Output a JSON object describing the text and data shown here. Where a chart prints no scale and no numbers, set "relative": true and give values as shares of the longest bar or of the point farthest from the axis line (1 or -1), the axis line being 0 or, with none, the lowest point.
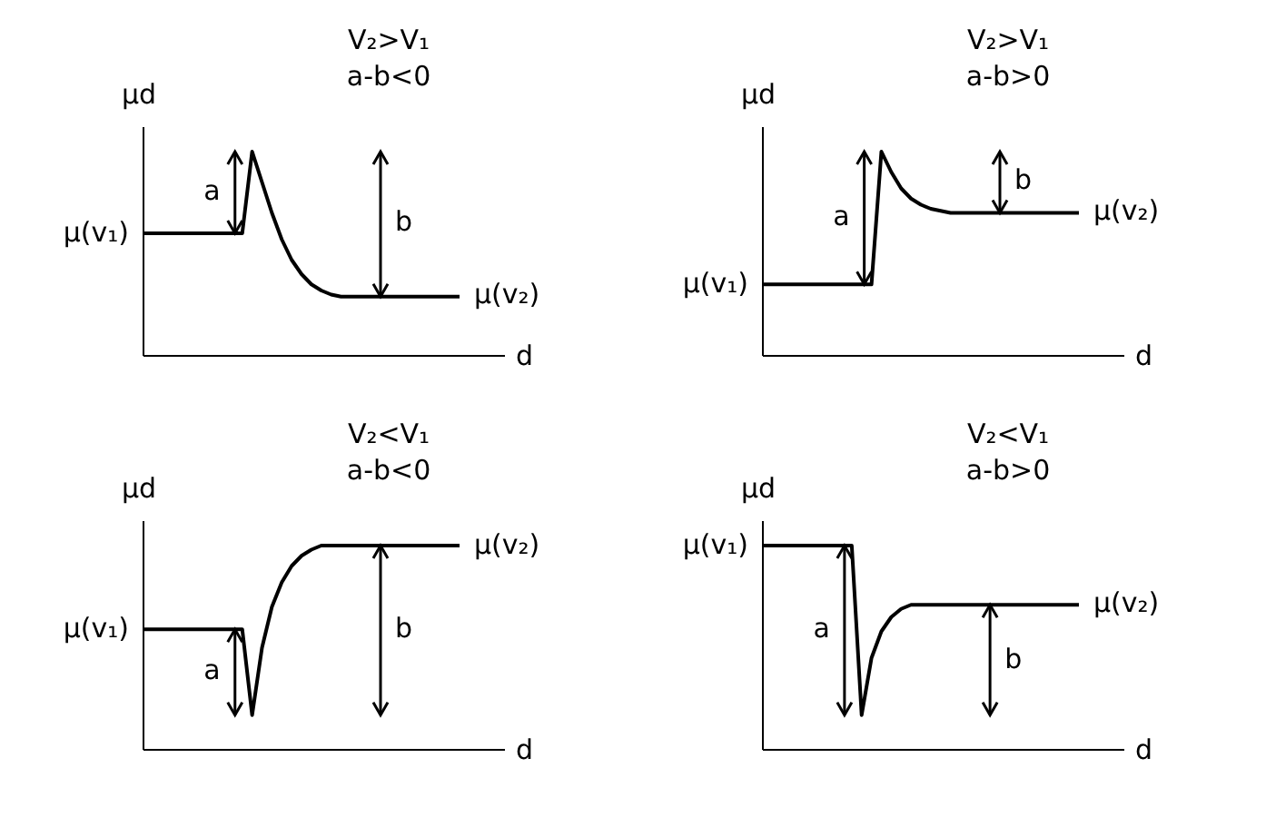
{
  "chart_data": [
    {
      "type": "line",
      "title": "V₂>V₁",
      "subtitle": "a-b<0",
      "xlabel": "d",
      "ylabel": "μd",
      "relative": true,
      "categories": [
        null,
        null,
        null,
        null,
        null,
        null,
        null,
        null,
        null,
        null,
        null,
        null,
        null,
        null,
        null,
        null,
        null,
        null,
        null,
        null,
        null,
        null,
        null,
        null,
        null,
        null,
        null,
        null,
        null,
        null,
        null,
        null,
        null
      ],
      "series": [
        {
          "color": "#000000",
          "values": [
            0.6,
            0.6,
            0.6,
            0.6,
            0.6,
            0.6,
            0.6,
            0.6,
            0.6,
            0.6,
            0.6,
            1,
            0.85,
            0.7,
            0.57,
            0.47,
            0.4,
            0.35,
            0.32,
            0.3,
            0.29,
            0.29,
            0.29,
            0.29,
            0.29,
            0.29,
            0.29,
            0.29,
            0.29,
            0.29,
            0.29,
            0.29,
            0.29
          ]
        }
      ],
      "annotations": [
        "μ(v₁)",
        "μ(v₂)",
        "a",
        "b"
      ]
    },
    {
      "type": "line",
      "title": "V₂>V₁",
      "subtitle": "a-b>0",
      "xlabel": "d",
      "ylabel": "μd",
      "relative": true,
      "categories": [
        null,
        null,
        null,
        null,
        null,
        null,
        null,
        null,
        null,
        null,
        null,
        null,
        null,
        null,
        null,
        null,
        null,
        null,
        null,
        null,
        null,
        null,
        null,
        null,
        null,
        null,
        null,
        null,
        null,
        null,
        null,
        null,
        null
      ],
      "series": [
        {
          "color": "#000000",
          "values": [
            0.35,
            0.35,
            0.35,
            0.35,
            0.35,
            0.35,
            0.35,
            0.35,
            0.35,
            0.35,
            0.35,
            0.35,
            1,
            0.9,
            0.82,
            0.77,
            0.74,
            0.72,
            0.71,
            0.7,
            0.7,
            0.7,
            0.7,
            0.7,
            0.7,
            0.7,
            0.7,
            0.7,
            0.7,
            0.7,
            0.7,
            0.7,
            0.7
          ]
        }
      ],
      "annotations": [
        "μ(v₁)",
        "μ(v₂)",
        "a",
        "b"
      ]
    },
    {
      "type": "line",
      "title": "V₂<V₁",
      "subtitle": "a-b<0",
      "xlabel": "d",
      "ylabel": "μd",
      "relative": true,
      "categories": [
        null,
        null,
        null,
        null,
        null,
        null,
        null,
        null,
        null,
        null,
        null,
        null,
        null,
        null,
        null,
        null,
        null,
        null,
        null,
        null,
        null,
        null,
        null,
        null,
        null,
        null,
        null,
        null,
        null,
        null,
        null,
        null,
        null
      ],
      "series": [
        {
          "color": "#000000",
          "values": [
            0.59,
            0.59,
            0.59,
            0.59,
            0.59,
            0.59,
            0.59,
            0.59,
            0.59,
            0.59,
            0.59,
            0.17,
            0.5,
            0.7,
            0.82,
            0.9,
            0.95,
            0.98,
            1,
            1,
            1,
            1,
            1,
            1,
            1,
            1,
            1,
            1,
            1,
            1,
            1,
            1,
            1
          ]
        }
      ],
      "annotations": [
        "μ(v₁)",
        "μ(v₂)",
        "a",
        "b"
      ]
    },
    {
      "type": "line",
      "title": "V₂<V₁",
      "subtitle": "a-b>0",
      "xlabel": "d",
      "ylabel": "μd",
      "relative": true,
      "categories": [
        null,
        null,
        null,
        null,
        null,
        null,
        null,
        null,
        null,
        null,
        null,
        null,
        null,
        null,
        null,
        null,
        null,
        null,
        null,
        null,
        null,
        null,
        null,
        null,
        null,
        null,
        null,
        null,
        null,
        null,
        null,
        null,
        null
      ],
      "series": [
        {
          "color": "#000000",
          "values": [
            1,
            1,
            1,
            1,
            1,
            1,
            1,
            1,
            1,
            1,
            0.17,
            0.45,
            0.58,
            0.65,
            0.69,
            0.71,
            0.71,
            0.71,
            0.71,
            0.71,
            0.71,
            0.71,
            0.71,
            0.71,
            0.71,
            0.71,
            0.71,
            0.71,
            0.71,
            0.71,
            0.71,
            0.71,
            0.71
          ]
        }
      ],
      "annotations": [
        "μ(v₁)",
        "μ(v₂)",
        "a",
        "b"
      ]
    }
  ]
}
